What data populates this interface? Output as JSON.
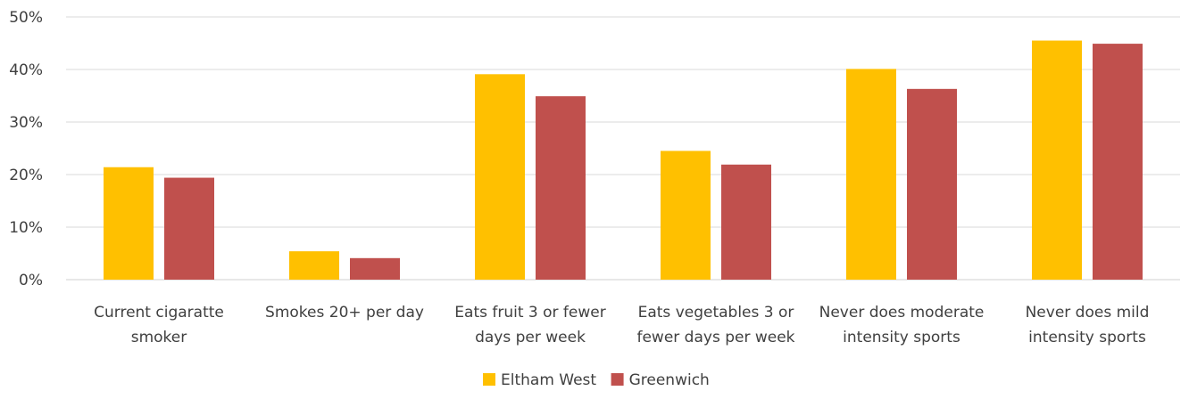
{
  "chart_data": {
    "type": "bar",
    "categories": [
      [
        "Current cigaratte",
        "smoker"
      ],
      [
        "Smokes 20+ per day"
      ],
      [
        "Eats fruit 3 or fewer",
        "days per week"
      ],
      [
        "Eats vegetables 3 or",
        "fewer days per week"
      ],
      [
        "Never does moderate",
        "intensity sports"
      ],
      [
        "Never does mild",
        "intensity sports"
      ]
    ],
    "series": [
      {
        "name": "Eltham West",
        "color": "#FFC000",
        "values": [
          21.4,
          5.4,
          39.1,
          24.5,
          40.1,
          45.5
        ]
      },
      {
        "name": "Greenwich",
        "color": "#C0504D",
        "values": [
          19.4,
          4.1,
          34.9,
          21.9,
          36.3,
          44.9
        ]
      }
    ],
    "y_ticks": [
      "0%",
      "10%",
      "20%",
      "30%",
      "40%",
      "50%"
    ],
    "ylim": [
      0,
      50
    ],
    "grid": true,
    "legend": "bottom-center",
    "title": "",
    "xlabel": "",
    "ylabel": ""
  }
}
